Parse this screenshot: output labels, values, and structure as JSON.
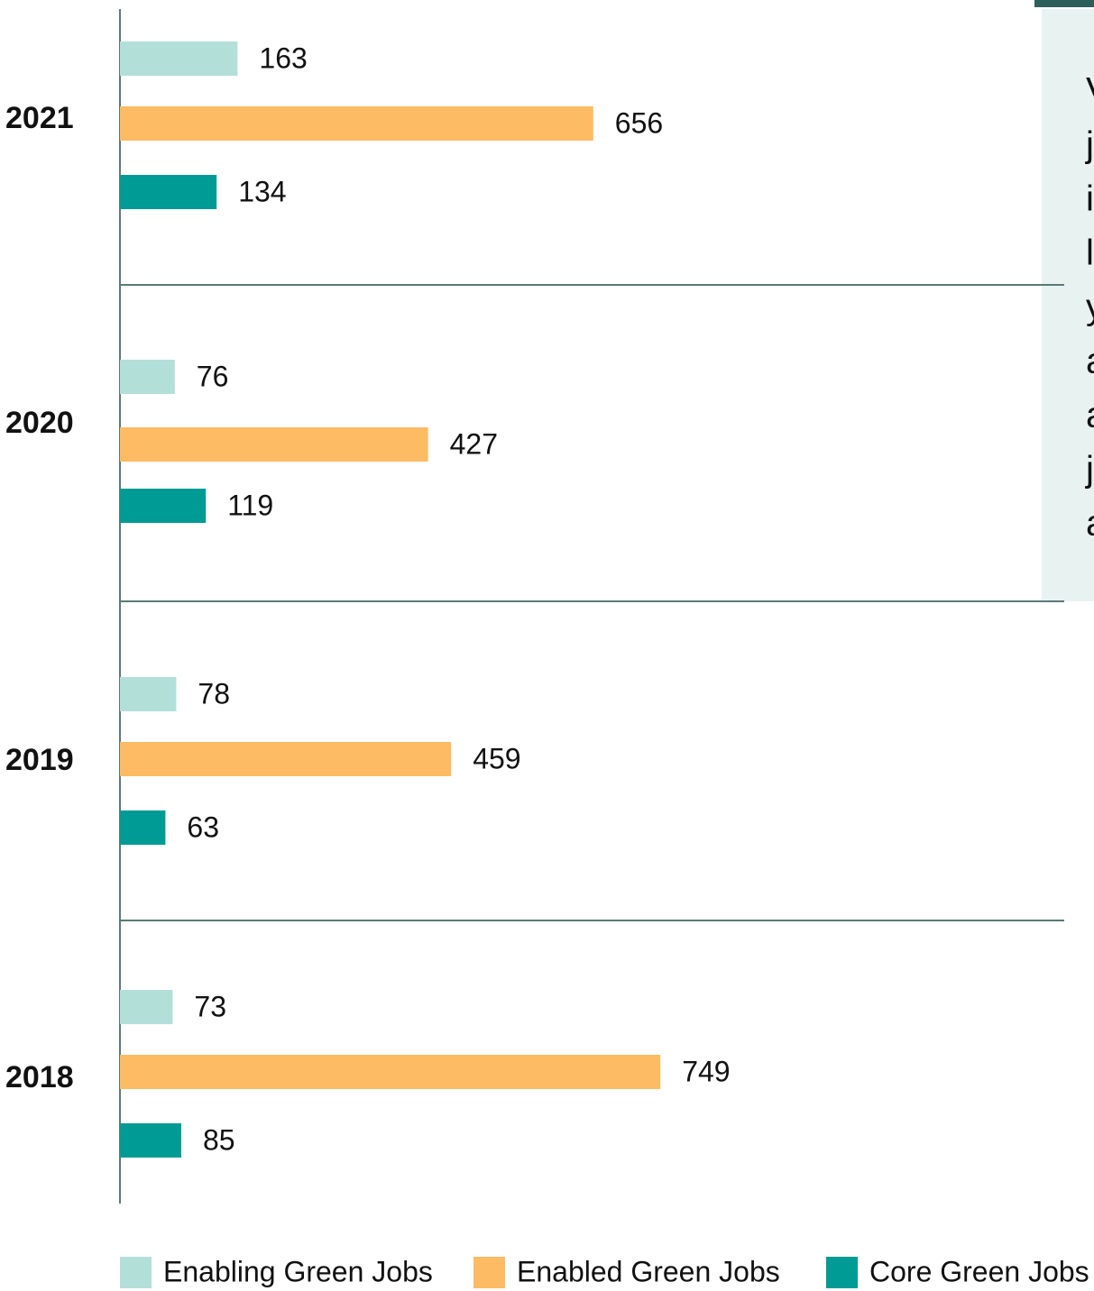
{
  "chart_data": {
    "type": "bar",
    "orientation": "horizontal",
    "categories": [
      "2021",
      "2020",
      "2019",
      "2018"
    ],
    "series": [
      {
        "name": "Enabling Green Jobs",
        "color": "#b3dfd9",
        "values": [
          163,
          76,
          78,
          73
        ]
      },
      {
        "name": "Enabled Green Jobs",
        "color": "#fdbb63",
        "values": [
          656,
          427,
          459,
          749
        ]
      },
      {
        "name": "Core Green Jobs",
        "color": "#009b94",
        "values": [
          134,
          119,
          63,
          85
        ]
      }
    ],
    "legend": "bottom"
  },
  "sidebar_text": [
    "V",
    "j",
    "i",
    "l",
    "y",
    "a",
    "a",
    "j",
    "a"
  ]
}
